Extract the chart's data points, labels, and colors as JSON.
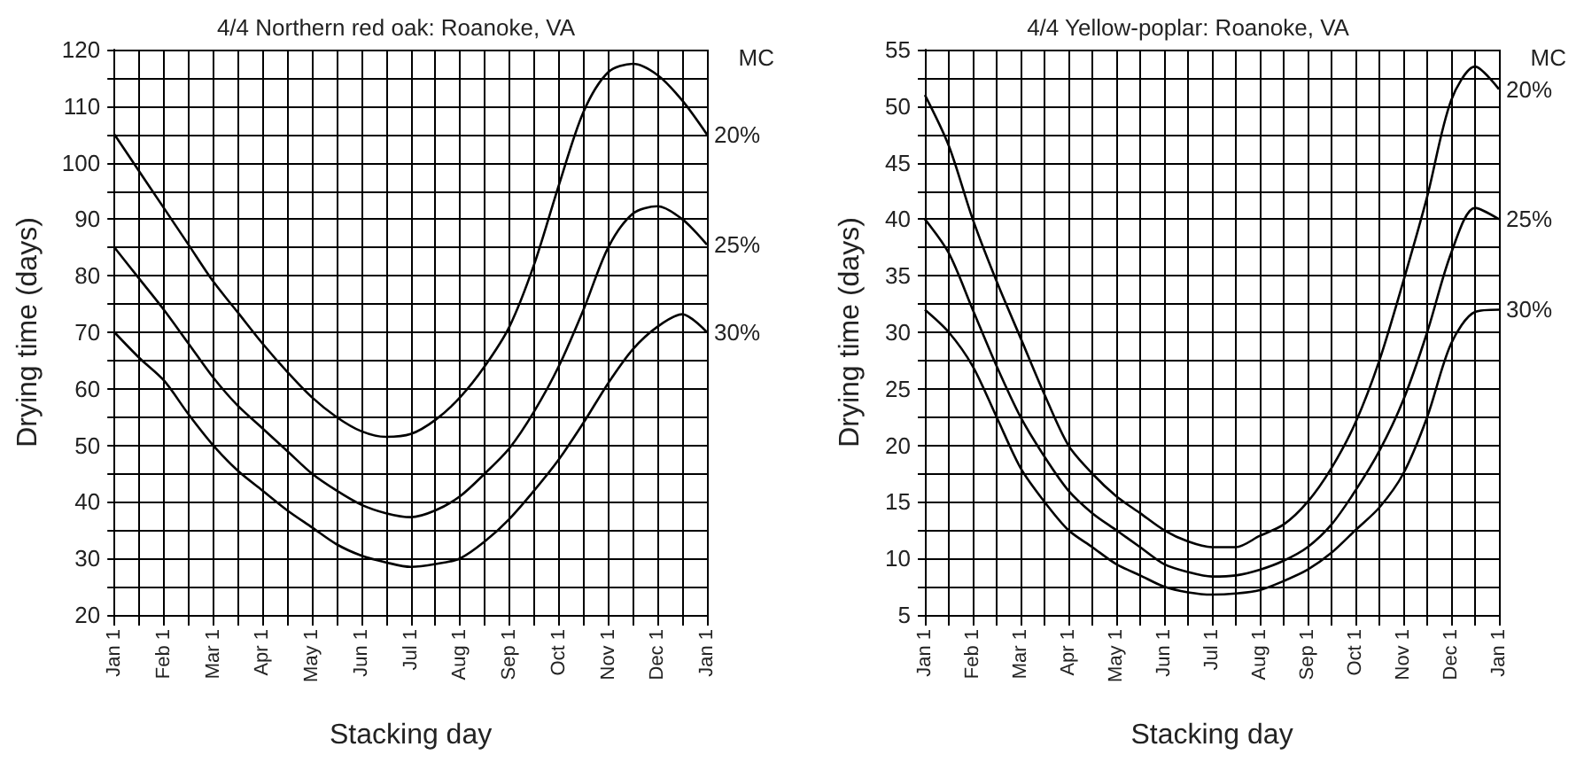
{
  "chart_data": [
    {
      "type": "line",
      "title": "4/4 Northern red oak: Roanoke, VA",
      "xlabel": "Stacking day",
      "ylabel": "Drying time (days)",
      "legend_title": "MC",
      "legend": false,
      "grid": true,
      "marker": "none",
      "line_style": "solid",
      "categories": [
        "Jan 1",
        null,
        "Feb 1",
        null,
        "Mar 1",
        null,
        "Apr 1",
        null,
        "May 1",
        null,
        "Jun 1",
        null,
        "Jul 1",
        null,
        "Aug 1",
        null,
        "Sep 1",
        null,
        "Oct 1",
        null,
        "Nov 1",
        null,
        "Dec 1",
        null,
        "Jan 1"
      ],
      "ylim": [
        20,
        120
      ],
      "yticks": [
        20,
        {
          "value": 25,
          "label": null
        },
        30,
        {
          "value": 35,
          "label": null
        },
        40,
        {
          "value": 45,
          "label": null
        },
        50,
        {
          "value": 55,
          "label": null
        },
        60,
        {
          "value": 65,
          "label": null
        },
        70,
        {
          "value": 75,
          "label": null
        },
        80,
        {
          "value": 85,
          "label": null
        },
        90,
        {
          "value": 95,
          "label": null
        },
        100,
        {
          "value": 105,
          "label": null
        },
        110,
        {
          "value": 115,
          "label": null
        },
        120
      ],
      "series": [
        {
          "name": "20%",
          "color": "#000000",
          "values": [
            105,
            98.5,
            92,
            85.5,
            79,
            73.5,
            68,
            63,
            58.5,
            55,
            52.5,
            51.5,
            52,
            54.5,
            58.5,
            64,
            71,
            82,
            96,
            109,
            116,
            117.5,
            115.5,
            111,
            105
          ]
        },
        {
          "name": "25%",
          "color": "#000000",
          "values": [
            85,
            79.5,
            74,
            68,
            62,
            57,
            53,
            49,
            45,
            42,
            39.5,
            38,
            37.3,
            38.5,
            41,
            45,
            49.5,
            56,
            64,
            74,
            85,
            91,
            92.3,
            90,
            85.5
          ]
        },
        {
          "name": "30%",
          "color": "#000000",
          "values": [
            70,
            65.5,
            61.5,
            55.5,
            50,
            45.5,
            42,
            38.5,
            35.5,
            32.5,
            30.5,
            29.3,
            28.5,
            29,
            30,
            33,
            37,
            42,
            47.5,
            54,
            61,
            67,
            71,
            73.2,
            70
          ]
        }
      ]
    },
    {
      "type": "line",
      "title": "4/4 Yellow-poplar: Roanoke, VA",
      "xlabel": "Stacking day",
      "ylabel": "Drying time (days)",
      "legend_title": "MC",
      "legend": false,
      "grid": true,
      "marker": "none",
      "line_style": "solid",
      "categories": [
        "Jan 1",
        null,
        "Feb 1",
        null,
        "Mar 1",
        null,
        "Apr 1",
        null,
        "May 1",
        null,
        "Jun 1",
        null,
        "Jul 1",
        null,
        "Aug 1",
        null,
        "Sep 1",
        null,
        "Oct 1",
        null,
        "Nov 1",
        null,
        "Dec 1",
        null,
        "Jan 1"
      ],
      "ylim": [
        5,
        55
      ],
      "yticks": [
        5,
        {
          "value": 7.5,
          "label": null
        },
        10,
        {
          "value": 12.5,
          "label": null
        },
        15,
        {
          "value": 17.5,
          "label": null
        },
        20,
        {
          "value": 22.5,
          "label": null
        },
        25,
        {
          "value": 27.5,
          "label": null
        },
        30,
        {
          "value": 32.5,
          "label": null
        },
        35,
        {
          "value": 37.5,
          "label": null
        },
        40,
        {
          "value": 42.5,
          "label": null
        },
        45,
        {
          "value": 47.5,
          "label": null
        },
        50,
        {
          "value": 52.5,
          "label": null
        },
        55
      ],
      "series": [
        {
          "name": "20%",
          "color": "#000000",
          "values": [
            51,
            46.5,
            40,
            34.5,
            29.5,
            24.5,
            20,
            17.5,
            15.5,
            14,
            12.5,
            11.5,
            11,
            11,
            12,
            13,
            15,
            18,
            22,
            27.5,
            34.5,
            42,
            50.5,
            53.5,
            51.5
          ]
        },
        {
          "name": "25%",
          "color": "#000000",
          "values": [
            40,
            37,
            32,
            27,
            22.5,
            19,
            16,
            14,
            12.5,
            11,
            9.5,
            8.8,
            8.4,
            8.5,
            9,
            9.8,
            11,
            13,
            16,
            19.5,
            24,
            30,
            37,
            41,
            40
          ]
        },
        {
          "name": "30%",
          "color": "#000000",
          "values": [
            32,
            30,
            27,
            22.5,
            18,
            15,
            12.5,
            11,
            9.5,
            8.5,
            7.5,
            7,
            6.8,
            6.9,
            7.2,
            8,
            9,
            10.5,
            12.5,
            14.5,
            17.5,
            22.5,
            29,
            31.8,
            32
          ]
        }
      ]
    }
  ]
}
